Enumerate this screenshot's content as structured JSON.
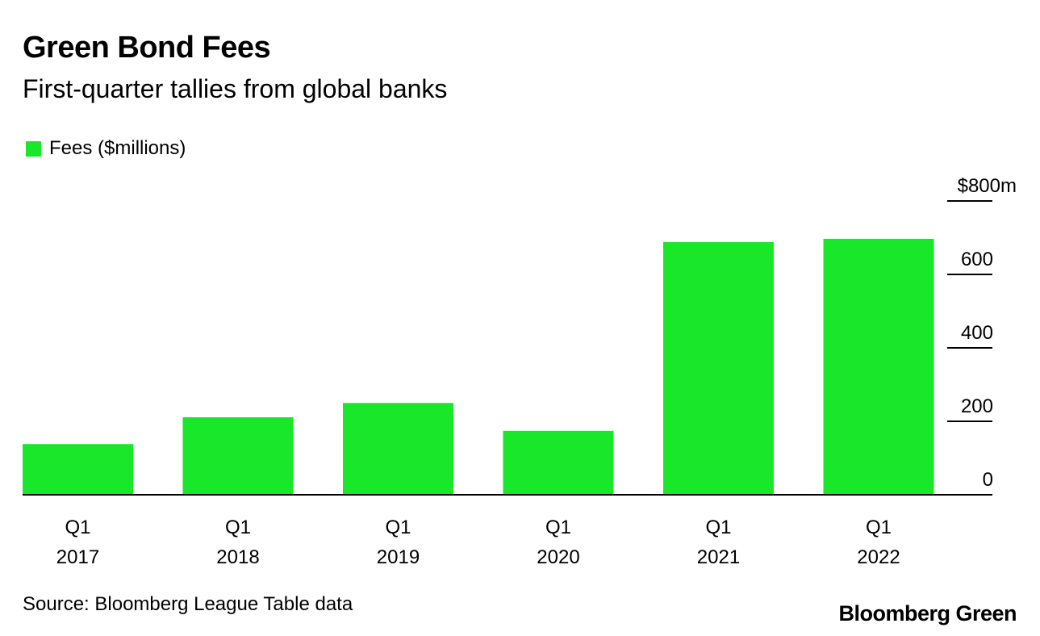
{
  "header": {
    "title": "Green Bond Fees",
    "subtitle": "First-quarter tallies from global banks"
  },
  "footer": {
    "source": "Source: Bloomberg League Table data",
    "brand": "Bloomberg Green"
  },
  "colors": {
    "bar": "#19e82a",
    "axis": "#000000",
    "text": "#000000",
    "background": "#ffffff"
  },
  "chart_data": {
    "type": "bar",
    "categories": [
      [
        "Q1",
        "2017"
      ],
      [
        "Q1",
        "2018"
      ],
      [
        "Q1",
        "2019"
      ],
      [
        "Q1",
        "2020"
      ],
      [
        "Q1",
        "2021"
      ],
      [
        "Q1",
        "2022"
      ]
    ],
    "series": [
      {
        "name": "Fees ($millions)",
        "values": [
          138,
          211,
          250,
          174,
          688,
          697
        ]
      }
    ],
    "y_ticks": [
      {
        "value": 0,
        "label": "0"
      },
      {
        "value": 200,
        "label": "200"
      },
      {
        "value": 400,
        "label": "400"
      },
      {
        "value": 600,
        "label": "600"
      },
      {
        "value": 800,
        "label": "$800m"
      }
    ],
    "ylim": [
      0,
      800
    ],
    "y_axis_side": "right",
    "grid": false,
    "legend_position": "top-left"
  }
}
